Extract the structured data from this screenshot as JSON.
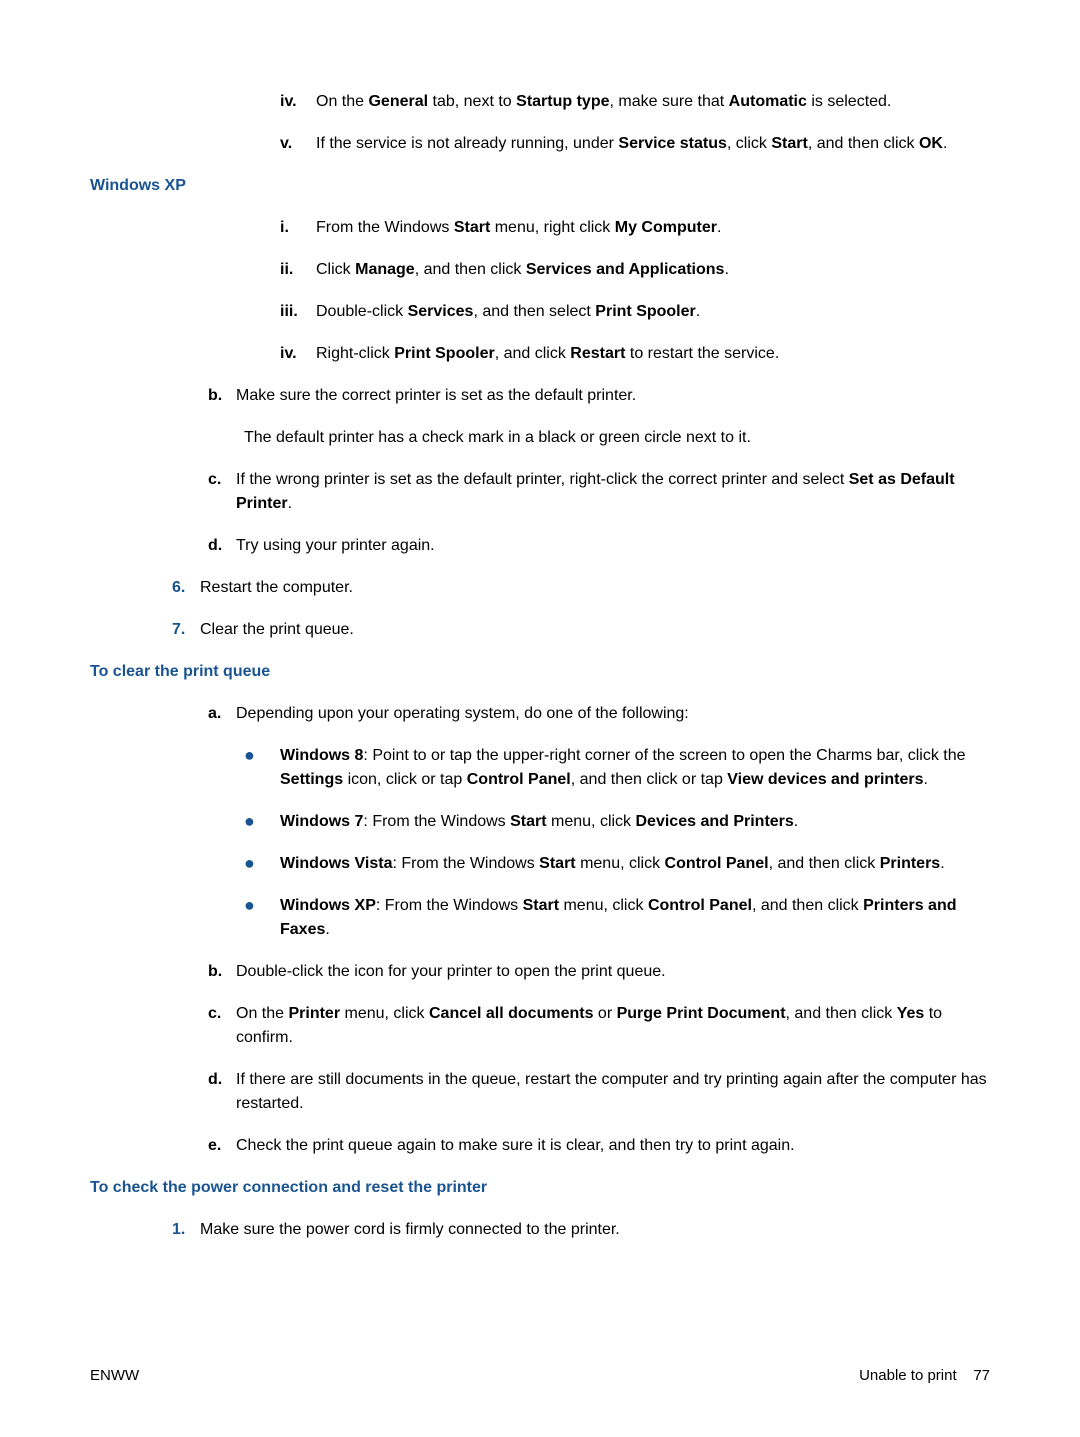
{
  "topSection": {
    "iv": "On the <b>General</b> tab, next to <b>Startup type</b>, make sure that <b>Automatic</b> is selected.",
    "v": "If the service is not already running, under <b>Service status</b>, click <b>Start</b>, and then click <b>OK</b>."
  },
  "headings": {
    "winxp": "Windows XP",
    "clearQueue": "To clear the print queue",
    "checkPower": "To check the power connection and reset the printer"
  },
  "winxp": {
    "i": "From the Windows <b>Start</b> menu, right click <b>My Computer</b>.",
    "ii": "Click <b>Manage</b>, and then click <b>Services and Applications</b>.",
    "iii": "Double-click <b>Services</b>, and then select <b>Print Spooler</b>.",
    "iv": "Right-click <b>Print Spooler</b>, and click <b>Restart</b> to restart the service."
  },
  "letters": {
    "b": "Make sure the correct printer is set as the default printer.",
    "bSub": "The default printer has a check mark in a black or green circle next to it.",
    "c": "If the wrong printer is set as the default printer, right-click the correct printer and select <b>Set as Default Printer</b>.",
    "d": "Try using your printer again."
  },
  "nums": {
    "n6": "Restart the computer.",
    "n7": "Clear the print queue."
  },
  "clearQueue": {
    "a": "Depending upon your operating system, do one of the following:",
    "bullets": {
      "w8": "<b>Windows 8</b>: Point to or tap the upper-right corner of the screen to open the Charms bar, click the <b>Settings</b> icon, click or tap <b>Control Panel</b>, and then click or tap <b>View devices and printers</b>.",
      "w7": "<b>Windows 7</b>: From the Windows <b>Start</b> menu, click <b>Devices and Printers</b>.",
      "wv": "<b>Windows Vista</b>: From the Windows <b>Start</b> menu, click <b>Control Panel</b>, and then click <b>Printers</b>.",
      "wxp": "<b>Windows XP</b>: From the Windows <b>Start</b> menu, click <b>Control Panel</b>, and then click <b>Printers and Faxes</b>."
    },
    "b": "Double-click the icon for your printer to open the print queue.",
    "c": "On the <b>Printer</b> menu, click <b>Cancel all documents</b> or <b>Purge Print Document</b>, and then click <b>Yes</b> to confirm.",
    "d": "If there are still documents in the queue, restart the computer and try printing again after the computer has restarted.",
    "e": "Check the print queue again to make sure it is clear, and then try to print again."
  },
  "checkPower": {
    "n1": "Make sure the power cord is firmly connected to the printer."
  },
  "footer": {
    "left": "ENWW",
    "rightLabel": "Unable to print",
    "pageNum": "77"
  },
  "markers": {
    "iv": "iv.",
    "v": "v.",
    "i": "i.",
    "ii": "ii.",
    "iii": "iii.",
    "b": "b.",
    "c": "c.",
    "d": "d.",
    "e": "e.",
    "a": "a.",
    "n6": "6.",
    "n7": "7.",
    "n1": "1.",
    "bullet": "●"
  }
}
